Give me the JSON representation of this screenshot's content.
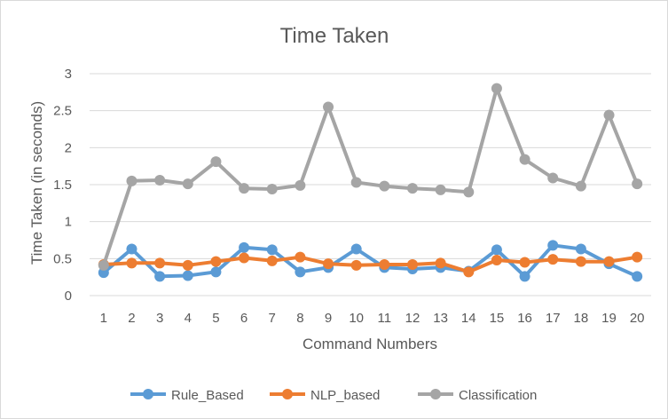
{
  "chart_data": {
    "type": "line",
    "title": "Time Taken",
    "xlabel": "Command Numbers",
    "ylabel": "Time Taken (in seconds)",
    "ylim": [
      0,
      3
    ],
    "yticks": [
      "0",
      "0.5",
      "1",
      "1.5",
      "2",
      "2.5",
      "3"
    ],
    "categories": [
      "1",
      "2",
      "3",
      "4",
      "5",
      "6",
      "7",
      "8",
      "9",
      "10",
      "11",
      "12",
      "13",
      "14",
      "15",
      "16",
      "17",
      "18",
      "19",
      "20"
    ],
    "grid": "horizontal",
    "legend_position": "bottom",
    "series": [
      {
        "name": "Rule_Based",
        "color": "#5b9bd5",
        "values": [
          0.31,
          0.63,
          0.26,
          0.27,
          0.32,
          0.65,
          0.62,
          0.32,
          0.38,
          0.63,
          0.38,
          0.36,
          0.38,
          0.33,
          0.62,
          0.26,
          0.68,
          0.63,
          0.43,
          0.26
        ]
      },
      {
        "name": "NLP_based",
        "color": "#ed7d31",
        "values": [
          0.42,
          0.44,
          0.44,
          0.41,
          0.46,
          0.51,
          0.47,
          0.52,
          0.43,
          0.41,
          0.42,
          0.42,
          0.44,
          0.32,
          0.48,
          0.45,
          0.49,
          0.46,
          0.46,
          0.52
        ]
      },
      {
        "name": "Classification",
        "color": "#a5a5a5",
        "values": [
          0.41,
          1.55,
          1.56,
          1.51,
          1.81,
          1.45,
          1.44,
          1.49,
          2.55,
          1.53,
          1.48,
          1.45,
          1.43,
          1.4,
          2.8,
          1.84,
          1.59,
          1.48,
          2.44,
          1.51
        ]
      }
    ]
  }
}
